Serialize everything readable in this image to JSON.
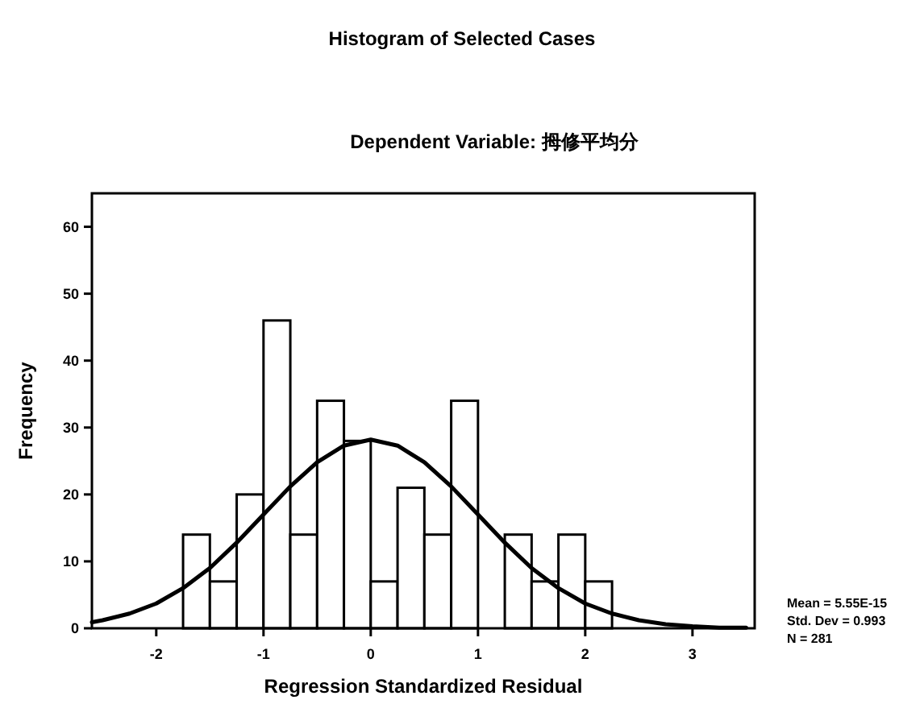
{
  "chart_data": {
    "type": "histogram",
    "title": "Histogram of Selected Cases",
    "subtitle": "Dependent Variable: 拇修平均分",
    "xlabel": "Regression Standardized Residual",
    "ylabel": "Frequency",
    "bins": [
      -1.75,
      -1.5,
      -1.25,
      -1.0,
      -0.75,
      -0.5,
      -0.25,
      0.0,
      0.25,
      0.5,
      0.75,
      1.0,
      1.25,
      1.5,
      1.75,
      2.0,
      2.25
    ],
    "values": [
      14,
      7,
      20,
      46,
      14,
      34,
      28,
      7,
      21,
      14,
      34,
      0,
      14,
      7,
      14,
      7
    ],
    "color": "#ffffff",
    "series": [
      {
        "type": "line",
        "color": "#000000",
        "x": [
          -2.6,
          -2.5,
          -2.25,
          -2.0,
          -1.75,
          -1.5,
          -1.25,
          -1.0,
          -0.75,
          -0.5,
          -0.25,
          0.0,
          0.25,
          0.5,
          0.75,
          1.0,
          1.25,
          1.5,
          1.75,
          2.0,
          2.25,
          2.5,
          2.75,
          3.0,
          3.25,
          3.5
        ],
        "values": [
          0.9,
          1.2,
          2.2,
          3.7,
          6.0,
          9.0,
          12.8,
          17.0,
          21.2,
          24.8,
          27.3,
          28.2,
          27.3,
          24.8,
          21.2,
          17.0,
          12.8,
          9.0,
          6.0,
          3.7,
          2.2,
          1.2,
          0.6,
          0.3,
          0.1,
          0.1
        ]
      }
    ],
    "xlim": [
      -2.6,
      3.58
    ],
    "ylim": [
      0,
      65
    ],
    "xticks": [
      -2,
      -1,
      0,
      1,
      2,
      3
    ],
    "yticks": [
      0,
      10,
      20,
      30,
      40,
      50,
      60
    ],
    "annotations": [
      "Mean = 5.55E-15",
      "Std. Dev = 0.993",
      "N = 281"
    ]
  }
}
